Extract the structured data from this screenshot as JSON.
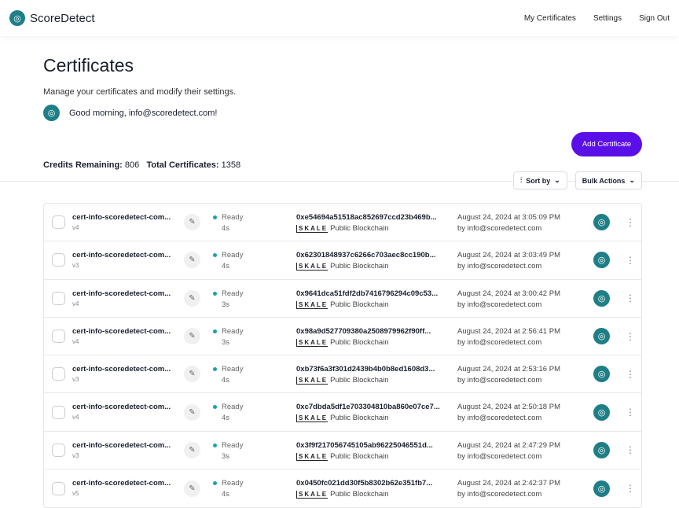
{
  "app": {
    "name": "ScoreDetect"
  },
  "nav": {
    "items": [
      "My Certificates",
      "Settings",
      "Sign Out"
    ]
  },
  "page": {
    "title": "Certificates",
    "subtitle": "Manage your certificates and modify their settings.",
    "greeting": "Good morning, info@scoredetect.com!",
    "add_label": "Add Certificate"
  },
  "stats": {
    "credits_label": "Credits Remaining:",
    "credits": "806",
    "total_label": "Total Certificates:",
    "total": "1358"
  },
  "toolbar": {
    "sort_label": "Sort by",
    "bulk_label": "Bulk Actions"
  },
  "colors": {
    "accent": "#5b0fe8",
    "brand": "#1e7f86",
    "status": "#1aa3a8"
  },
  "rows": [
    {
      "name": "cert-info-scoredetect-com...",
      "version": "v4",
      "status": "Ready",
      "time": "4s",
      "hash": "0xe54694a51518ac852697ccd23b469b...",
      "chain_logo": "SKALE",
      "chain": "Public Blockchain",
      "date": "August 24, 2024 at 3:05:09 PM",
      "by": "by info@scoredetect.com"
    },
    {
      "name": "cert-info-scoredetect-com...",
      "version": "v3",
      "status": "Ready",
      "time": "4s",
      "hash": "0x62301848937c6266c703aec8cc190b...",
      "chain_logo": "SKALE",
      "chain": "Public Blockchain",
      "date": "August 24, 2024 at 3:03:49 PM",
      "by": "by info@scoredetect.com"
    },
    {
      "name": "cert-info-scoredetect-com...",
      "version": "v4",
      "status": "Ready",
      "time": "3s",
      "hash": "0x9641dca51fdf2db7416796294c09c53...",
      "chain_logo": "SKALE",
      "chain": "Public Blockchain",
      "date": "August 24, 2024 at 3:00:42 PM",
      "by": "by info@scoredetect.com"
    },
    {
      "name": "cert-info-scoredetect-com...",
      "version": "v4",
      "status": "Ready",
      "time": "3s",
      "hash": "0x98a9d527709380a2508979962f90ff...",
      "chain_logo": "SKALE",
      "chain": "Public Blockchain",
      "date": "August 24, 2024 at 2:56:41 PM",
      "by": "by info@scoredetect.com"
    },
    {
      "name": "cert-info-scoredetect-com...",
      "version": "v3",
      "status": "Ready",
      "time": "4s",
      "hash": "0xb73f6a3f301d2439b4b0b8ed1608d3...",
      "chain_logo": "SKALE",
      "chain": "Public Blockchain",
      "date": "August 24, 2024 at 2:53:16 PM",
      "by": "by info@scoredetect.com"
    },
    {
      "name": "cert-info-scoredetect-com...",
      "version": "v4",
      "status": "Ready",
      "time": "4s",
      "hash": "0xc7dbda5df1e703304810ba860e07ce7...",
      "chain_logo": "SKALE",
      "chain": "Public Blockchain",
      "date": "August 24, 2024 at 2:50:18 PM",
      "by": "by info@scoredetect.com"
    },
    {
      "name": "cert-info-scoredetect-com...",
      "version": "v3",
      "status": "Ready",
      "time": "3s",
      "hash": "0x3f9f217056745105ab96225046551d...",
      "chain_logo": "SKALE",
      "chain": "Public Blockchain",
      "date": "August 24, 2024 at 2:47:29 PM",
      "by": "by info@scoredetect.com"
    },
    {
      "name": "cert-info-scoredetect-com...",
      "version": "v5",
      "status": "Ready",
      "time": "4s",
      "hash": "0x0450fc021dd30f5b8302b62e351fb7...",
      "chain_logo": "SKALE",
      "chain": "Public Blockchain",
      "date": "August 24, 2024 at 2:42:37 PM",
      "by": "by info@scoredetect.com"
    }
  ]
}
